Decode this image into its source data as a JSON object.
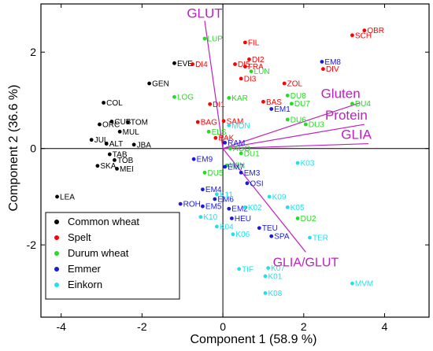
{
  "chart_data": {
    "type": "scatter",
    "title": "",
    "xlabel": "Component 1 (58.9 %)",
    "ylabel": "Component 2 (36.6 %)",
    "xlim": [
      -4.5,
      5.1
    ],
    "ylim": [
      -3.5,
      3.0
    ],
    "xticks": [
      "-4",
      "-2",
      "0",
      "2",
      "4"
    ],
    "xtick_values": [
      -4,
      -2,
      0,
      2,
      4
    ],
    "yticks": [
      "-2",
      "0",
      "2"
    ],
    "ytick_values": [
      -2,
      0,
      2
    ],
    "zero_lines": true,
    "grid": false,
    "legend_position": "bottom-left",
    "series": [
      {
        "name": "Common wheat",
        "color": "#000000",
        "points": [
          {
            "label": "EVE",
            "x": -1.2,
            "y": 1.77
          },
          {
            "label": "GEN",
            "x": -1.82,
            "y": 1.35
          },
          {
            "label": "COL",
            "x": -2.95,
            "y": 0.95
          },
          {
            "label": "CUB",
            "x": -2.75,
            "y": 0.56
          },
          {
            "label": "TOM",
            "x": -2.35,
            "y": 0.55
          },
          {
            "label": "ORC",
            "x": -3.05,
            "y": 0.5
          },
          {
            "label": "MUL",
            "x": -2.55,
            "y": 0.35
          },
          {
            "label": "JUL",
            "x": -3.25,
            "y": 0.18
          },
          {
            "label": "ALT",
            "x": -2.88,
            "y": 0.1
          },
          {
            "label": "JBA",
            "x": -2.2,
            "y": 0.08
          },
          {
            "label": "TAB",
            "x": -2.8,
            "y": -0.12
          },
          {
            "label": "TOB",
            "x": -2.68,
            "y": -0.24
          },
          {
            "label": "SKA",
            "x": -3.1,
            "y": -0.36
          },
          {
            "label": "MEI",
            "x": -2.62,
            "y": -0.42
          },
          {
            "label": "LEA",
            "x": -4.1,
            "y": -1.0
          }
        ]
      },
      {
        "name": "Spelt",
        "color": "#ff0000",
        "points": [
          {
            "label": "FIL",
            "x": 0.55,
            "y": 2.2
          },
          {
            "label": "OBR",
            "x": 3.5,
            "y": 2.45
          },
          {
            "label": "SCH",
            "x": 3.2,
            "y": 2.35
          },
          {
            "label": "DI2",
            "x": 0.65,
            "y": 1.85
          },
          {
            "label": "DI5",
            "x": 0.3,
            "y": 1.75
          },
          {
            "label": "FRA",
            "x": 0.55,
            "y": 1.7
          },
          {
            "label": "DI4",
            "x": -0.75,
            "y": 1.75
          },
          {
            "label": "DI3",
            "x": 0.45,
            "y": 1.45
          },
          {
            "label": "ZOL",
            "x": 1.52,
            "y": 1.35
          },
          {
            "label": "DIV",
            "x": 2.48,
            "y": 1.65
          },
          {
            "label": "BAS",
            "x": 1.0,
            "y": 0.97
          },
          {
            "label": "DI1",
            "x": -0.32,
            "y": 0.92
          },
          {
            "label": "SAM",
            "x": 0.02,
            "y": 0.57
          },
          {
            "label": "BAG",
            "x": -0.62,
            "y": 0.55
          },
          {
            "label": "BAK",
            "x": -0.18,
            "y": 0.22
          }
        ]
      },
      {
        "name": "Durum wheat",
        "color": "#22dd22",
        "points": [
          {
            "label": "LUP",
            "x": -0.45,
            "y": 2.28
          },
          {
            "label": "LUN",
            "x": 0.7,
            "y": 1.6
          },
          {
            "label": "LOG",
            "x": -1.2,
            "y": 1.07
          },
          {
            "label": "KAR",
            "x": 0.15,
            "y": 1.05
          },
          {
            "label": "DU8",
            "x": 1.6,
            "y": 1.1
          },
          {
            "label": "DU7",
            "x": 1.7,
            "y": 0.93
          },
          {
            "label": "DU4",
            "x": 3.2,
            "y": 0.93
          },
          {
            "label": "DU6",
            "x": 1.6,
            "y": 0.6
          },
          {
            "label": "DU3",
            "x": 2.05,
            "y": 0.5
          },
          {
            "label": "ELS",
            "x": -0.35,
            "y": 0.35
          },
          {
            "label": "AGO",
            "x": 0.18,
            "y": 0.0
          },
          {
            "label": "DU1",
            "x": 0.45,
            "y": -0.1
          },
          {
            "label": "WIN",
            "x": 0.1,
            "y": -0.35
          },
          {
            "label": "DU5",
            "x": -0.45,
            "y": -0.5
          },
          {
            "label": "DU2",
            "x": 1.85,
            "y": -1.45
          }
        ]
      },
      {
        "name": "Emmer",
        "color": "#1a1add",
        "points": [
          {
            "label": "EM8",
            "x": 2.45,
            "y": 1.8
          },
          {
            "label": "EM1",
            "x": 1.2,
            "y": 0.82
          },
          {
            "label": "RAM",
            "x": 0.05,
            "y": 0.12
          },
          {
            "label": "EM9",
            "x": -0.72,
            "y": -0.22
          },
          {
            "label": "EM7",
            "x": 0.05,
            "y": -0.38
          },
          {
            "label": "EM3",
            "x": 0.45,
            "y": -0.5
          },
          {
            "label": "OSI",
            "x": 0.6,
            "y": -0.72
          },
          {
            "label": "EM4",
            "x": -0.5,
            "y": -0.85
          },
          {
            "label": "EM6",
            "x": -0.2,
            "y": -1.05
          },
          {
            "label": "ROH",
            "x": -1.05,
            "y": -1.15
          },
          {
            "label": "EM5",
            "x": -0.5,
            "y": -1.2
          },
          {
            "label": "EM2",
            "x": 0.15,
            "y": -1.25
          },
          {
            "label": "HEU",
            "x": 0.22,
            "y": -1.45
          },
          {
            "label": "TEU",
            "x": 0.9,
            "y": -1.65
          },
          {
            "label": "SPA",
            "x": 1.2,
            "y": -1.82
          }
        ]
      },
      {
        "name": "Einkorn",
        "color": "#22e0ee",
        "points": [
          {
            "label": "MON",
            "x": 0.15,
            "y": 0.48
          },
          {
            "label": "K03",
            "x": 1.85,
            "y": -0.3
          },
          {
            "label": "K11",
            "x": -0.15,
            "y": -0.95
          },
          {
            "label": "K09",
            "x": 1.15,
            "y": -1.0
          },
          {
            "label": "K02",
            "x": 0.55,
            "y": -1.22
          },
          {
            "label": "K05",
            "x": 1.6,
            "y": -1.22
          },
          {
            "label": "K10",
            "x": -0.55,
            "y": -1.42
          },
          {
            "label": "K04",
            "x": -0.15,
            "y": -1.62
          },
          {
            "label": "K06",
            "x": 0.25,
            "y": -1.78
          },
          {
            "label": "TER",
            "x": 2.15,
            "y": -1.85
          },
          {
            "label": "TIF",
            "x": 0.4,
            "y": -2.5
          },
          {
            "label": "K07",
            "x": 1.12,
            "y": -2.48
          },
          {
            "label": "K01",
            "x": 1.05,
            "y": -2.65
          },
          {
            "label": "MVM",
            "x": 3.2,
            "y": -2.8
          },
          {
            "label": "K08",
            "x": 1.05,
            "y": -3.0
          }
        ]
      }
    ],
    "vectors": [
      {
        "label": "GLUT",
        "x": -0.45,
        "y": 2.65
      },
      {
        "label": "Gluten",
        "x": 3.4,
        "y": 0.95
      },
      {
        "label": "Protein",
        "x": 3.5,
        "y": 0.5
      },
      {
        "label": "GLIA",
        "x": 3.6,
        "y": 0.1
      },
      {
        "label": "GLIA/GLUT",
        "x": 2.05,
        "y": -2.15
      }
    ]
  }
}
